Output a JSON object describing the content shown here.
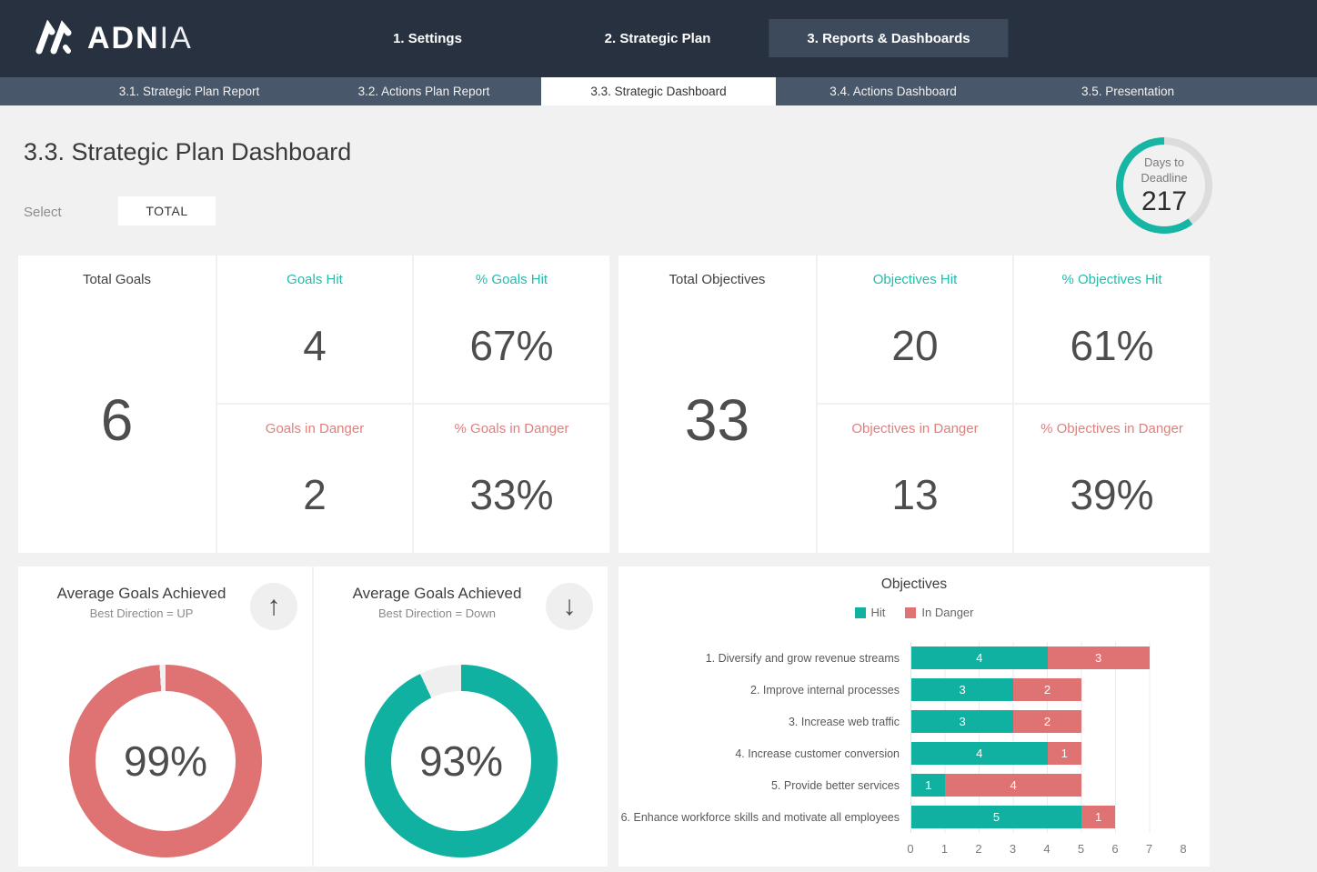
{
  "brand": {
    "name_bold": "ADN",
    "name_thin": "IA"
  },
  "top_nav": {
    "items": [
      {
        "label": "1. Settings",
        "active": false
      },
      {
        "label": "2. Strategic Plan",
        "active": false
      },
      {
        "label": "3. Reports & Dashboards",
        "active": true
      }
    ]
  },
  "sub_nav": {
    "tabs": [
      {
        "label": "3.1. Strategic Plan Report",
        "active": false
      },
      {
        "label": "3.2. Actions Plan Report",
        "active": false
      },
      {
        "label": "3.3. Strategic Dashboard",
        "active": true
      },
      {
        "label": "3.4. Actions Dashboard",
        "active": false
      },
      {
        "label": "3.5. Presentation",
        "active": false
      }
    ]
  },
  "page": {
    "title": "3.3. Strategic Plan Dashboard",
    "select_label": "Select",
    "select_value": "TOTAL"
  },
  "deadline": {
    "label_line1": "Days to",
    "label_line2": "Deadline",
    "value": "217",
    "progress_pct": 60,
    "ring_color": "#16b5a4",
    "ring_rest_color": "#dcdcdc"
  },
  "goals": {
    "total_label": "Total Goals",
    "total_value": "6",
    "hit_label": "Goals Hit",
    "hit_value": "4",
    "hit_pct_label": "% Goals Hit",
    "hit_pct_value": "67%",
    "danger_label": "Goals in Danger",
    "danger_value": "2",
    "danger_pct_label": "% Goals in Danger",
    "danger_pct_value": "33%"
  },
  "objectives": {
    "total_label": "Total Objectives",
    "total_value": "33",
    "hit_label": "Objectives Hit",
    "hit_value": "20",
    "hit_pct_label": "% Objectives Hit",
    "hit_pct_value": "61%",
    "danger_label": "Objectives in Danger",
    "danger_value": "13",
    "danger_pct_label": "% Objectives in Danger",
    "danger_pct_value": "39%"
  },
  "icons": {
    "up_arrow": "↑",
    "down_arrow": "↓"
  },
  "colors": {
    "teal": "#10b1a0",
    "salmon": "#df7373",
    "header_bg": "#28313f",
    "subnav_bg": "#48586a"
  },
  "chart_data": [
    {
      "type": "pie",
      "subtype": "donut",
      "title": "Average Goals Achieved",
      "subtitle": "Best Direction = UP",
      "best_direction": "up",
      "value_pct": 99,
      "label": "99%",
      "color": "#df7373",
      "remainder_color": "#f2f2f2"
    },
    {
      "type": "pie",
      "subtype": "donut",
      "title": "Average Goals Achieved",
      "subtitle": "Best Direction = Down",
      "best_direction": "down",
      "value_pct": 93,
      "label": "93%",
      "color": "#10b1a0",
      "remainder_color": "#efefef"
    },
    {
      "type": "bar",
      "orientation": "horizontal",
      "stacked": true,
      "title": "Objectives",
      "categories": [
        "1. Diversify and grow revenue streams",
        "2. Improve internal processes",
        "3. Increase web traffic",
        "4. Increase customer conversion",
        "5. Provide better services",
        "6. Enhance workforce skills and motivate all employees"
      ],
      "series": [
        {
          "name": "Hit",
          "color": "#10b1a0",
          "values": [
            4,
            3,
            3,
            4,
            1,
            5
          ]
        },
        {
          "name": "In Danger",
          "color": "#df7373",
          "values": [
            3,
            2,
            2,
            1,
            4,
            1
          ]
        }
      ],
      "xlim": [
        0,
        8
      ],
      "x_ticks": [
        0,
        1,
        2,
        3,
        4,
        5,
        6,
        7,
        8
      ],
      "legend_position": "top",
      "grid": true
    }
  ]
}
